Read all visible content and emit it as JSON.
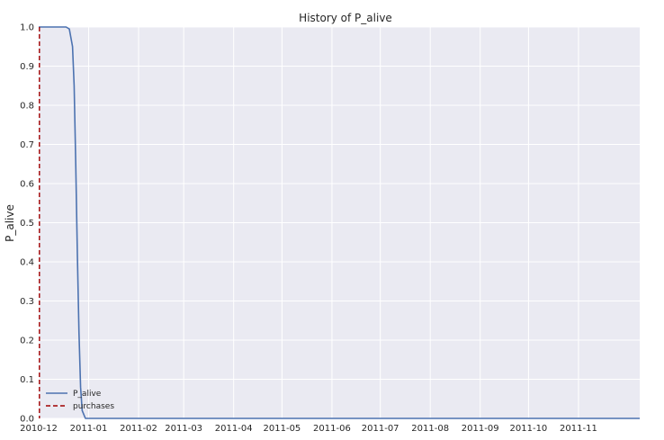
{
  "chart_data": {
    "type": "line",
    "title": "History of P_alive",
    "xlabel": "",
    "ylabel": "P_alive",
    "x_tick_labels": [
      "2010-12",
      "2011-01",
      "2011-02",
      "2011-03",
      "2011-04",
      "2011-05",
      "2011-06",
      "2011-07",
      "2011-08",
      "2011-09",
      "2011-10",
      "2011-11"
    ],
    "x_tick_dates": [
      "2010-12-01",
      "2011-01-01",
      "2011-02-01",
      "2011-03-01",
      "2011-04-01",
      "2011-05-01",
      "2011-06-01",
      "2011-07-01",
      "2011-08-01",
      "2011-09-01",
      "2011-10-01",
      "2011-11-01"
    ],
    "xlim": [
      "2010-12-01",
      "2011-12-09"
    ],
    "ylim": [
      0.0,
      1.0
    ],
    "y_ticks": [
      "0.0",
      "0.1",
      "0.2",
      "0.3",
      "0.4",
      "0.5",
      "0.6",
      "0.7",
      "0.8",
      "0.9",
      "1.0"
    ],
    "grid": true,
    "legend_position": "lower-left",
    "series": [
      {
        "name": "P_alive",
        "style": "solid",
        "color": "#4c72b0",
        "points": [
          [
            "2010-12-01",
            1.0
          ],
          [
            "2010-12-18",
            1.0
          ],
          [
            "2010-12-20",
            0.995
          ],
          [
            "2010-12-22",
            0.95
          ],
          [
            "2010-12-23",
            0.85
          ],
          [
            "2010-12-24",
            0.65
          ],
          [
            "2010-12-25",
            0.42
          ],
          [
            "2010-12-26",
            0.22
          ],
          [
            "2010-12-27",
            0.08
          ],
          [
            "2010-12-28",
            0.02
          ],
          [
            "2010-12-30",
            0.0
          ],
          [
            "2011-12-09",
            0.0
          ]
        ]
      },
      {
        "name": "purchases",
        "style": "dashed",
        "color": "#a00000",
        "x": [
          "2010-12-01"
        ]
      }
    ]
  }
}
